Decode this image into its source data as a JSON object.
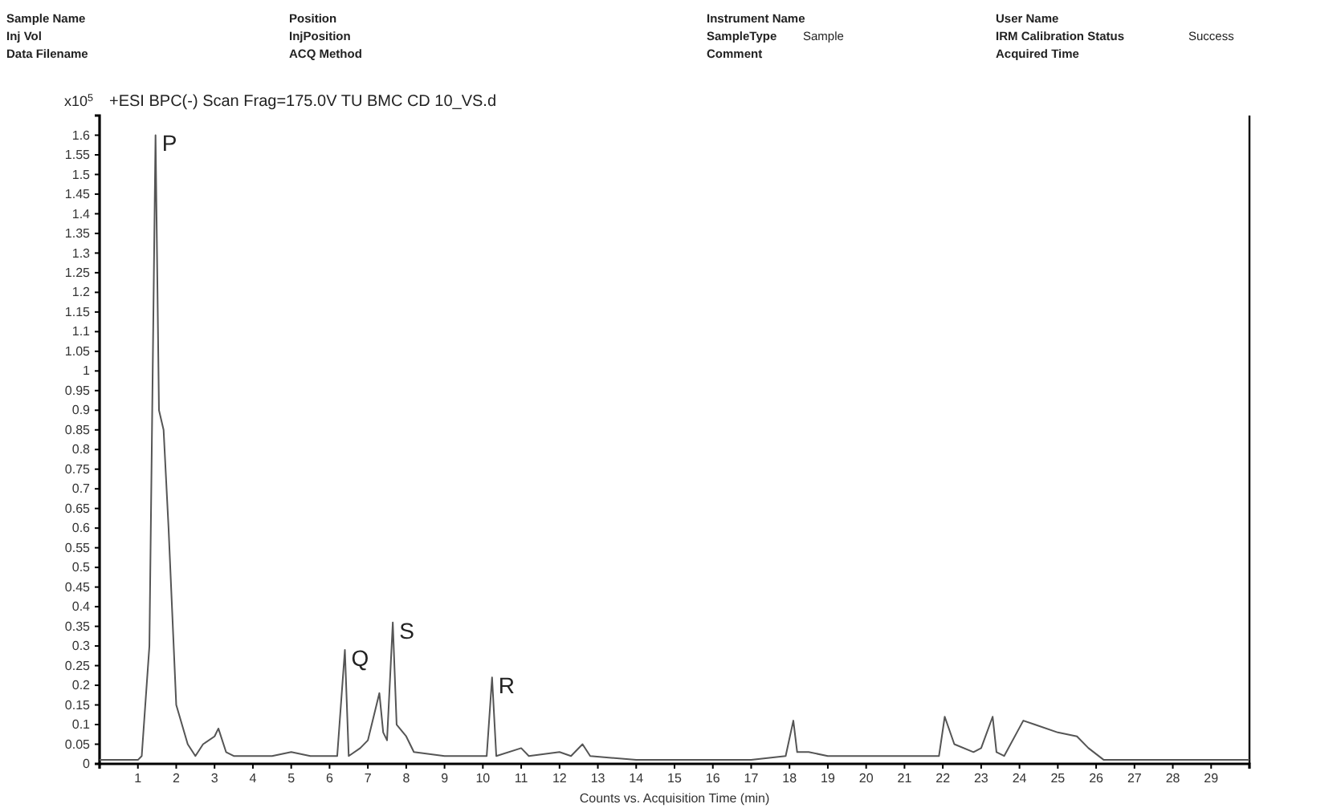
{
  "chart_data": {
    "type": "line",
    "title": "+ESI BPC(-) Scan Frag=175.0V TU BMC CD 10_VS.d",
    "xlabel": "Counts vs. Acquisition Time (min)",
    "ylabel": "x10$^{5}$",
    "annotations": [
      "Sample Name",
      "Position",
      "Instrument Name",
      "User Name",
      "Inj Vol",
      "InjPosition",
      "SampleType",
      "IRM Calibration Status",
      "Data Filename",
      "ACQ Method",
      "Comment",
      "Acquired Time",
      "Sample",
      "Success",
      {
        "text": "P",
        "x": 1.46,
        "y": 1.6
      },
      {
        "text": "Q",
        "x": 6.4,
        "y": 0.29
      },
      {
        "text": "S",
        "x": 7.65,
        "y": 0.36
      },
      {
        "text": "R",
        "x": 10.24,
        "y": 0.22
      }
    ],
    "x": [
      0,
      1,
      1.1,
      1.3,
      1.46,
      1.55,
      1.67,
      1.8,
      2.0,
      2.3,
      2.5,
      2.7,
      3.0,
      3.1,
      3.3,
      3.5,
      4.5,
      5.0,
      5.5,
      6.2,
      6.4,
      6.5,
      6.8,
      7.0,
      7.1,
      7.3,
      7.4,
      7.5,
      7.65,
      7.75,
      8.0,
      8.2,
      9,
      10.1,
      10.24,
      10.35,
      11,
      11.2,
      12,
      12.3,
      12.6,
      12.8,
      14,
      17,
      17.9,
      18.1,
      18.2,
      18.5,
      19,
      21.9,
      22.05,
      22.3,
      22.8,
      23.0,
      23.3,
      23.4,
      23.6,
      24.1,
      24.4,
      25.0,
      25.5,
      25.8,
      26.2,
      30
    ],
    "series": [
      {
        "color": "#555555",
        "values": [
          0.01,
          0.01,
          0.02,
          0.3,
          1.6,
          0.9,
          0.85,
          0.6,
          0.15,
          0.05,
          0.02,
          0.05,
          0.07,
          0.09,
          0.03,
          0.02,
          0.02,
          0.03,
          0.02,
          0.02,
          0.29,
          0.02,
          0.04,
          0.06,
          0.1,
          0.18,
          0.08,
          0.06,
          0.36,
          0.1,
          0.07,
          0.03,
          0.02,
          0.02,
          0.22,
          0.02,
          0.04,
          0.02,
          0.03,
          0.02,
          0.05,
          0.02,
          0.01,
          0.01,
          0.02,
          0.11,
          0.03,
          0.03,
          0.02,
          0.02,
          0.12,
          0.05,
          0.03,
          0.04,
          0.12,
          0.03,
          0.02,
          0.11,
          0.1,
          0.08,
          0.07,
          0.04,
          0.01,
          0.01
        ]
      }
    ],
    "xlim": [
      0,
      30
    ],
    "xticks": [
      1,
      2,
      3,
      4,
      5,
      6,
      7,
      8,
      9,
      10,
      11,
      12,
      13,
      14,
      15,
      16,
      17,
      18,
      19,
      20,
      21,
      22,
      23,
      24,
      25,
      26,
      27,
      28,
      29
    ],
    "ylim": [
      0,
      1.65
    ],
    "yticks": [
      0,
      0.05,
      0.1,
      0.15,
      0.2,
      0.25,
      0.3,
      0.35,
      0.4,
      0.45,
      0.5,
      0.55,
      0.6,
      0.65,
      0.7,
      0.75,
      0.8,
      0.85,
      0.9,
      0.95,
      1,
      1.05,
      1.1,
      1.15,
      1.2,
      1.25,
      1.3,
      1.35,
      1.4,
      1.45,
      1.5,
      1.55,
      1.6
    ],
    "grid": false,
    "marker": "none",
    "line_style": "solid"
  }
}
